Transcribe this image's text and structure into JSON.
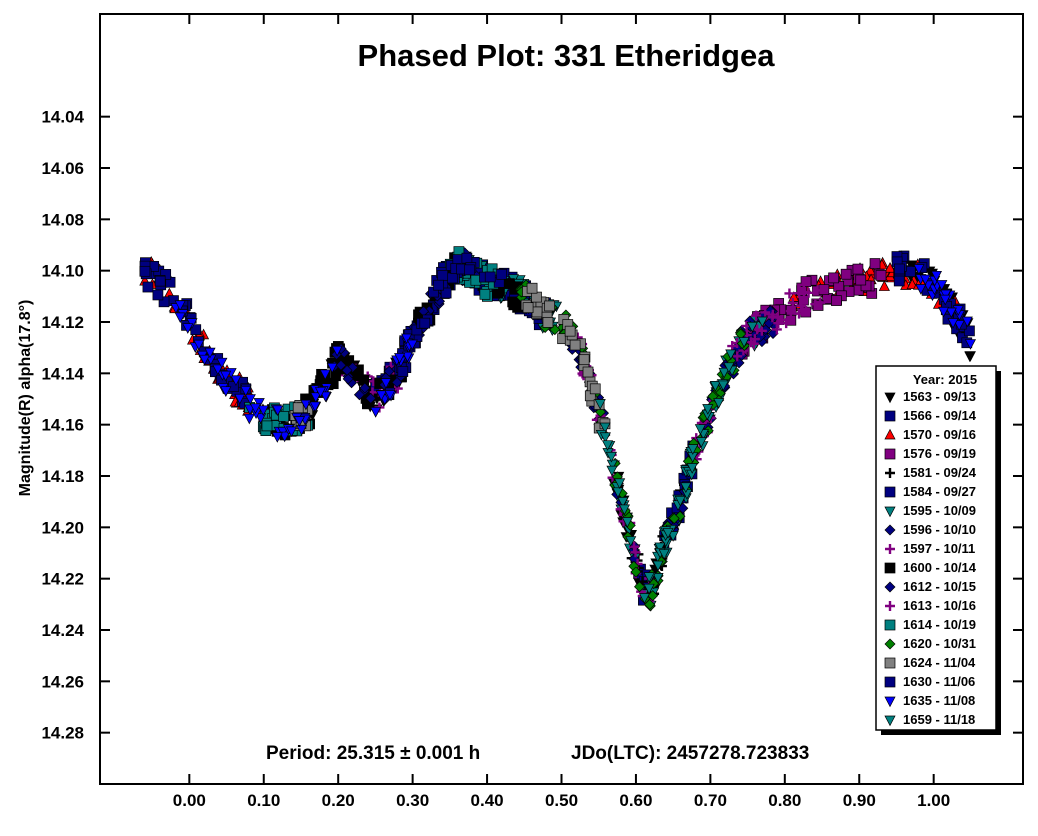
{
  "chart_data": {
    "type": "scatter",
    "title": "Phased Plot: 331 Etheridgea",
    "xlabel": "",
    "ylabel": "Magnitude(R) alpha(17.8°)",
    "xlim": [
      -0.12,
      1.12
    ],
    "ylim": [
      14.0,
      14.3
    ],
    "y_inverted": true,
    "x_ticks": [
      "0.00",
      "0.10",
      "0.20",
      "0.30",
      "0.40",
      "0.50",
      "0.60",
      "0.70",
      "0.80",
      "0.90",
      "1.00"
    ],
    "y_ticks": [
      "14.04",
      "14.06",
      "14.08",
      "14.10",
      "14.12",
      "14.14",
      "14.16",
      "14.18",
      "14.20",
      "14.22",
      "14.24",
      "14.26",
      "14.28"
    ],
    "period_text": "Period: 25.315 ± 0.001 h",
    "epoch_text": "JDo(LTC): 2457278.723833",
    "legend_title": "Year: 2015",
    "legend_placement": "right",
    "series": [
      {
        "name": "1563 - 09/13",
        "marker": "triangle-down",
        "color": "#000000",
        "ranges": [
          [
            0.15,
            0.29
          ],
          [
            0.57,
            0.66
          ],
          [
            0.95,
            1.05
          ]
        ]
      },
      {
        "name": "1566 - 09/14",
        "marker": "square",
        "color": "#000080",
        "ranges": [
          [
            0.25,
            0.48
          ],
          [
            0.6,
            0.68
          ]
        ]
      },
      {
        "name": "1570 - 09/16",
        "marker": "triangle",
        "color": "#ff0000",
        "ranges": [
          [
            -0.06,
            0.1
          ],
          [
            0.8,
            1.03
          ]
        ]
      },
      {
        "name": "1576 - 09/19",
        "marker": "square",
        "color": "#800080",
        "ranges": [
          [
            0.74,
            0.93
          ]
        ]
      },
      {
        "name": "1581 - 09/24",
        "marker": "plus",
        "color": "#000000",
        "ranges": [
          [
            0.58,
            0.64
          ]
        ]
      },
      {
        "name": "1584 - 09/27",
        "marker": "square",
        "color": "#000080",
        "ranges": [
          [
            -0.06,
            0.08
          ],
          [
            0.95,
            1.05
          ]
        ]
      },
      {
        "name": "1595 - 10/09",
        "marker": "triangle-down",
        "color": "#008080",
        "ranges": [
          [
            0.36,
            0.5
          ],
          [
            0.58,
            0.77
          ]
        ]
      },
      {
        "name": "1596 - 10/10",
        "marker": "diamond",
        "color": "#000080",
        "ranges": [
          [
            0.5,
            0.6
          ],
          [
            0.64,
            0.8
          ]
        ]
      },
      {
        "name": "1597 - 10/11",
        "marker": "plus",
        "color": "#800080",
        "ranges": [
          [
            0.2,
            0.28
          ],
          [
            0.52,
            0.62
          ]
        ]
      },
      {
        "name": "1600 - 10/14",
        "marker": "square",
        "color": "#000000",
        "ranges": [
          [
            0.1,
            0.45
          ]
        ]
      },
      {
        "name": "1612 - 10/15",
        "marker": "diamond",
        "color": "#000080",
        "ranges": [
          [
            0.18,
            0.4
          ]
        ]
      },
      {
        "name": "1613 - 10/16",
        "marker": "plus",
        "color": "#800080",
        "ranges": [
          [
            0.68,
            0.85
          ]
        ]
      },
      {
        "name": "1614 - 10/19",
        "marker": "square",
        "color": "#008080",
        "ranges": [
          [
            0.08,
            0.16
          ],
          [
            0.35,
            0.42
          ]
        ]
      },
      {
        "name": "1620 - 10/31",
        "marker": "diamond",
        "color": "#008000",
        "ranges": [
          [
            0.44,
            0.75
          ]
        ]
      },
      {
        "name": "1624 - 11/04",
        "marker": "square",
        "color": "#808080",
        "ranges": [
          [
            0.14,
            0.16
          ],
          [
            0.45,
            0.56
          ]
        ]
      },
      {
        "name": "1630 - 11/06",
        "marker": "square",
        "color": "#000080",
        "ranges": [
          [
            0.28,
            0.42
          ]
        ]
      },
      {
        "name": "1635 - 11/08",
        "marker": "triangle-down",
        "color": "#0000ff",
        "ranges": [
          [
            -0.02,
            0.2
          ],
          [
            0.25,
            0.3
          ],
          [
            0.98,
            1.05
          ]
        ]
      },
      {
        "name": "1659 - 11/18",
        "marker": "triangle-down",
        "color": "#008080",
        "ranges": [
          [
            0.55,
            0.77
          ]
        ]
      }
    ],
    "lightcurve": {
      "x": [
        -0.06,
        -0.02,
        0.02,
        0.06,
        0.1,
        0.13,
        0.16,
        0.18,
        0.2,
        0.22,
        0.25,
        0.28,
        0.3,
        0.32,
        0.34,
        0.36,
        0.38,
        0.4,
        0.42,
        0.45,
        0.48,
        0.5,
        0.52,
        0.54,
        0.56,
        0.58,
        0.6,
        0.61,
        0.62,
        0.64,
        0.66,
        0.68,
        0.7,
        0.72,
        0.75,
        0.78,
        0.8,
        0.83,
        0.86,
        0.9,
        0.94,
        0.97,
        1.0,
        1.03,
        1.05
      ],
      "y": [
        14.1,
        14.11,
        14.13,
        14.145,
        14.158,
        14.16,
        14.155,
        14.145,
        14.135,
        14.14,
        14.15,
        14.14,
        14.125,
        14.115,
        14.105,
        14.098,
        14.1,
        14.105,
        14.105,
        14.11,
        14.118,
        14.12,
        14.128,
        14.145,
        14.165,
        14.19,
        14.213,
        14.223,
        14.225,
        14.205,
        14.19,
        14.17,
        14.155,
        14.14,
        14.125,
        14.12,
        14.115,
        14.11,
        14.108,
        14.105,
        14.1,
        14.1,
        14.105,
        14.118,
        14.128
      ]
    }
  }
}
